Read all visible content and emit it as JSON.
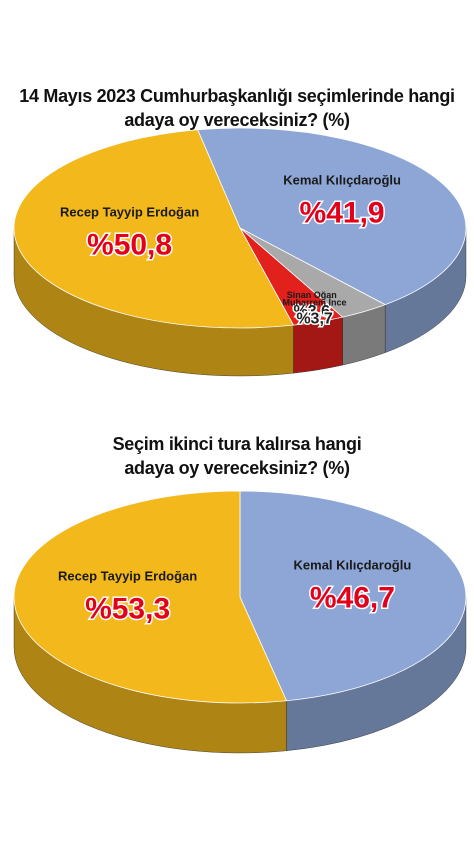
{
  "chart_data": [
    {
      "type": "pie",
      "title": "14 Mayıs 2023 Cumhurbaşkanlığı seçimlerinde hangi adaya oy vereceksiniz? (%)",
      "categories": [
        "Kemal Kılıçdaroğlu",
        "Sinan Oğan",
        "Muharrem İnce",
        "Recep Tayyip Erdoğan"
      ],
      "values": [
        41.9,
        3.6,
        3.7,
        50.8
      ],
      "value_labels": [
        "%41,9",
        "%3,6",
        "%3,7",
        "%50,8"
      ],
      "colors": [
        "#8ea6d6",
        "#a9a9a9",
        "#e3211c",
        "#f2b81c"
      ]
    },
    {
      "type": "pie",
      "title": "Seçim ikinci tura kalırsa hangi adaya oy vereceksiniz? (%)",
      "categories": [
        "Kemal Kılıçdaroğlu",
        "Recep Tayyip Erdoğan"
      ],
      "values": [
        46.7,
        53.3
      ],
      "value_labels": [
        "%46,7",
        "%53,3"
      ],
      "colors": [
        "#8ea6d6",
        "#f2b81c"
      ]
    }
  ]
}
